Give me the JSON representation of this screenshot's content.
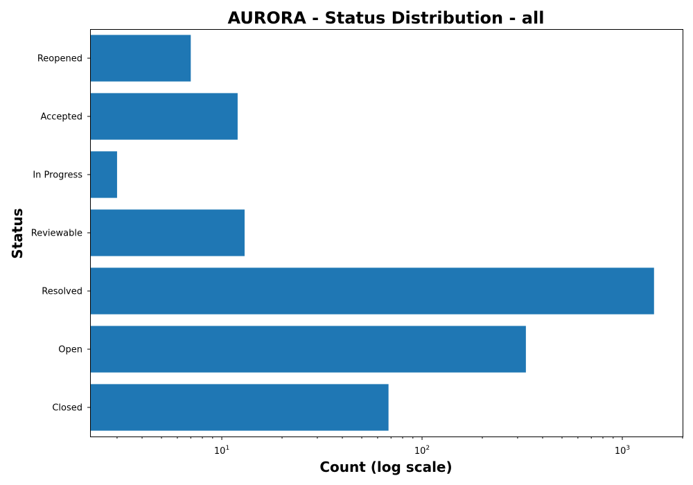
{
  "chart_data": {
    "type": "bar",
    "orientation": "horizontal",
    "title": "AURORA - Status Distribution - all",
    "xlabel": "Count (log scale)",
    "ylabel": "Status",
    "xscale": "log",
    "xlim": [
      2.2,
      2000
    ],
    "categories": [
      "Closed",
      "Open",
      "Resolved",
      "Reviewable",
      "In Progress",
      "Accepted",
      "Reopened"
    ],
    "values": [
      68,
      330,
      1440,
      13,
      3,
      12,
      7
    ],
    "x_ticks": [
      {
        "value": 10,
        "base": "10",
        "exp": "1"
      },
      {
        "value": 100,
        "base": "10",
        "exp": "2"
      },
      {
        "value": 1000,
        "base": "10",
        "exp": "3"
      }
    ],
    "bar_color": "#1f77b4",
    "grid": false,
    "legend": "none"
  }
}
